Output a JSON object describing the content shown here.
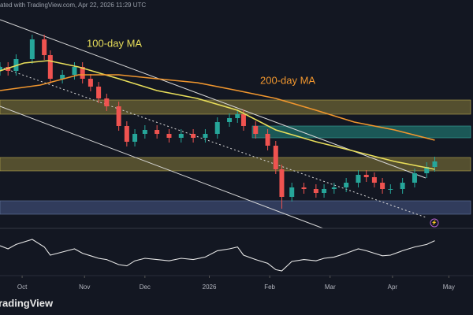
{
  "header": "ated with TradingView.com, Apr 22, 2026 11:29 UTC",
  "logo": "radingView",
  "chart_data": {
    "type": "candlestick",
    "annotations": [
      {
        "text": "100-day MA",
        "color": "#e8de5a"
      },
      {
        "text": "200-day MA",
        "color": "#f0962e"
      }
    ],
    "xlim": [
      0,
      235
    ],
    "xticks": [
      {
        "value": 11,
        "label": "Oct"
      },
      {
        "value": 42,
        "label": "Nov"
      },
      {
        "value": 72,
        "label": "Dec"
      },
      {
        "value": 104,
        "label": "2026"
      },
      {
        "value": 134,
        "label": "Feb"
      },
      {
        "value": 164,
        "label": "Mar"
      },
      {
        "value": 195,
        "label": "Apr"
      },
      {
        "value": 223,
        "label": "May"
      }
    ],
    "ylim": [
      0,
      263
    ],
    "up_color": "#26a69a",
    "down_color": "#ef5350",
    "x": [
      0,
      4,
      8,
      16,
      22,
      25,
      31,
      37,
      41,
      45,
      49,
      53,
      59,
      63,
      67,
      72,
      78,
      84,
      90,
      96,
      102,
      108,
      114,
      118,
      121,
      127,
      133,
      137,
      140,
      145,
      151,
      157,
      161,
      166,
      172,
      178,
      182,
      186,
      190,
      194,
      200,
      206,
      212,
      216
    ],
    "open": [
      198,
      203,
      198,
      213,
      238,
      218,
      188,
      193,
      203,
      188,
      178,
      163,
      153,
      128,
      108,
      118,
      123,
      118,
      113,
      118,
      113,
      118,
      133,
      138,
      143,
      128,
      118,
      103,
      73,
      38,
      50,
      48,
      43,
      48,
      50,
      56,
      66,
      63,
      56,
      48,
      48,
      56,
      68,
      76
    ],
    "high": [
      209,
      209,
      219,
      244,
      244,
      224,
      199,
      209,
      209,
      194,
      184,
      169,
      159,
      134,
      124,
      129,
      129,
      124,
      124,
      124,
      124,
      139,
      144,
      149,
      149,
      134,
      124,
      109,
      79,
      56,
      56,
      54,
      54,
      56,
      62,
      72,
      72,
      69,
      62,
      54,
      62,
      74,
      82,
      89
    ],
    "low": [
      192,
      192,
      192,
      207,
      212,
      182,
      182,
      187,
      182,
      172,
      157,
      147,
      122,
      102,
      102,
      112,
      112,
      107,
      107,
      107,
      107,
      112,
      127,
      132,
      122,
      112,
      97,
      67,
      23,
      32,
      42,
      37,
      37,
      42,
      44,
      50,
      57,
      50,
      42,
      42,
      42,
      50,
      62,
      70
    ],
    "close": [
      203,
      198,
      213,
      238,
      218,
      188,
      193,
      203,
      188,
      178,
      163,
      153,
      128,
      108,
      118,
      123,
      118,
      113,
      118,
      113,
      118,
      133,
      138,
      143,
      128,
      118,
      103,
      73,
      38,
      50,
      48,
      43,
      48,
      50,
      56,
      66,
      63,
      56,
      48,
      48,
      56,
      68,
      76,
      83
    ],
    "moving_averages": [
      {
        "color": "#e8de5a",
        "x": [
          0,
          12,
          24,
          39,
          59,
          78,
          98,
          118,
          137,
          157,
          176,
          196,
          216
        ],
        "values": [
          198,
          208,
          211,
          203,
          188,
          173,
          163,
          148,
          123,
          108,
          96,
          83,
          73
        ]
      },
      {
        "color": "#f0962e",
        "x": [
          0,
          20,
          39,
          59,
          78,
          98,
          118,
          137,
          157,
          176,
          196,
          216
        ],
        "values": [
          173,
          180,
          193,
          193,
          188,
          183,
          173,
          163,
          148,
          133,
          123,
          110
        ]
      }
    ],
    "rsi": {
      "color": "#e6e6e6",
      "ylim": [
        0,
        100
      ],
      "values": [
        60,
        55,
        62,
        70,
        58,
        45,
        50,
        55,
        48,
        44,
        40,
        38,
        30,
        28,
        36,
        40,
        38,
        36,
        40,
        38,
        42,
        52,
        55,
        58,
        45,
        38,
        32,
        22,
        20,
        35,
        38,
        36,
        40,
        42,
        48,
        55,
        52,
        48,
        44,
        45,
        52,
        58,
        62,
        68
      ]
    }
  }
}
